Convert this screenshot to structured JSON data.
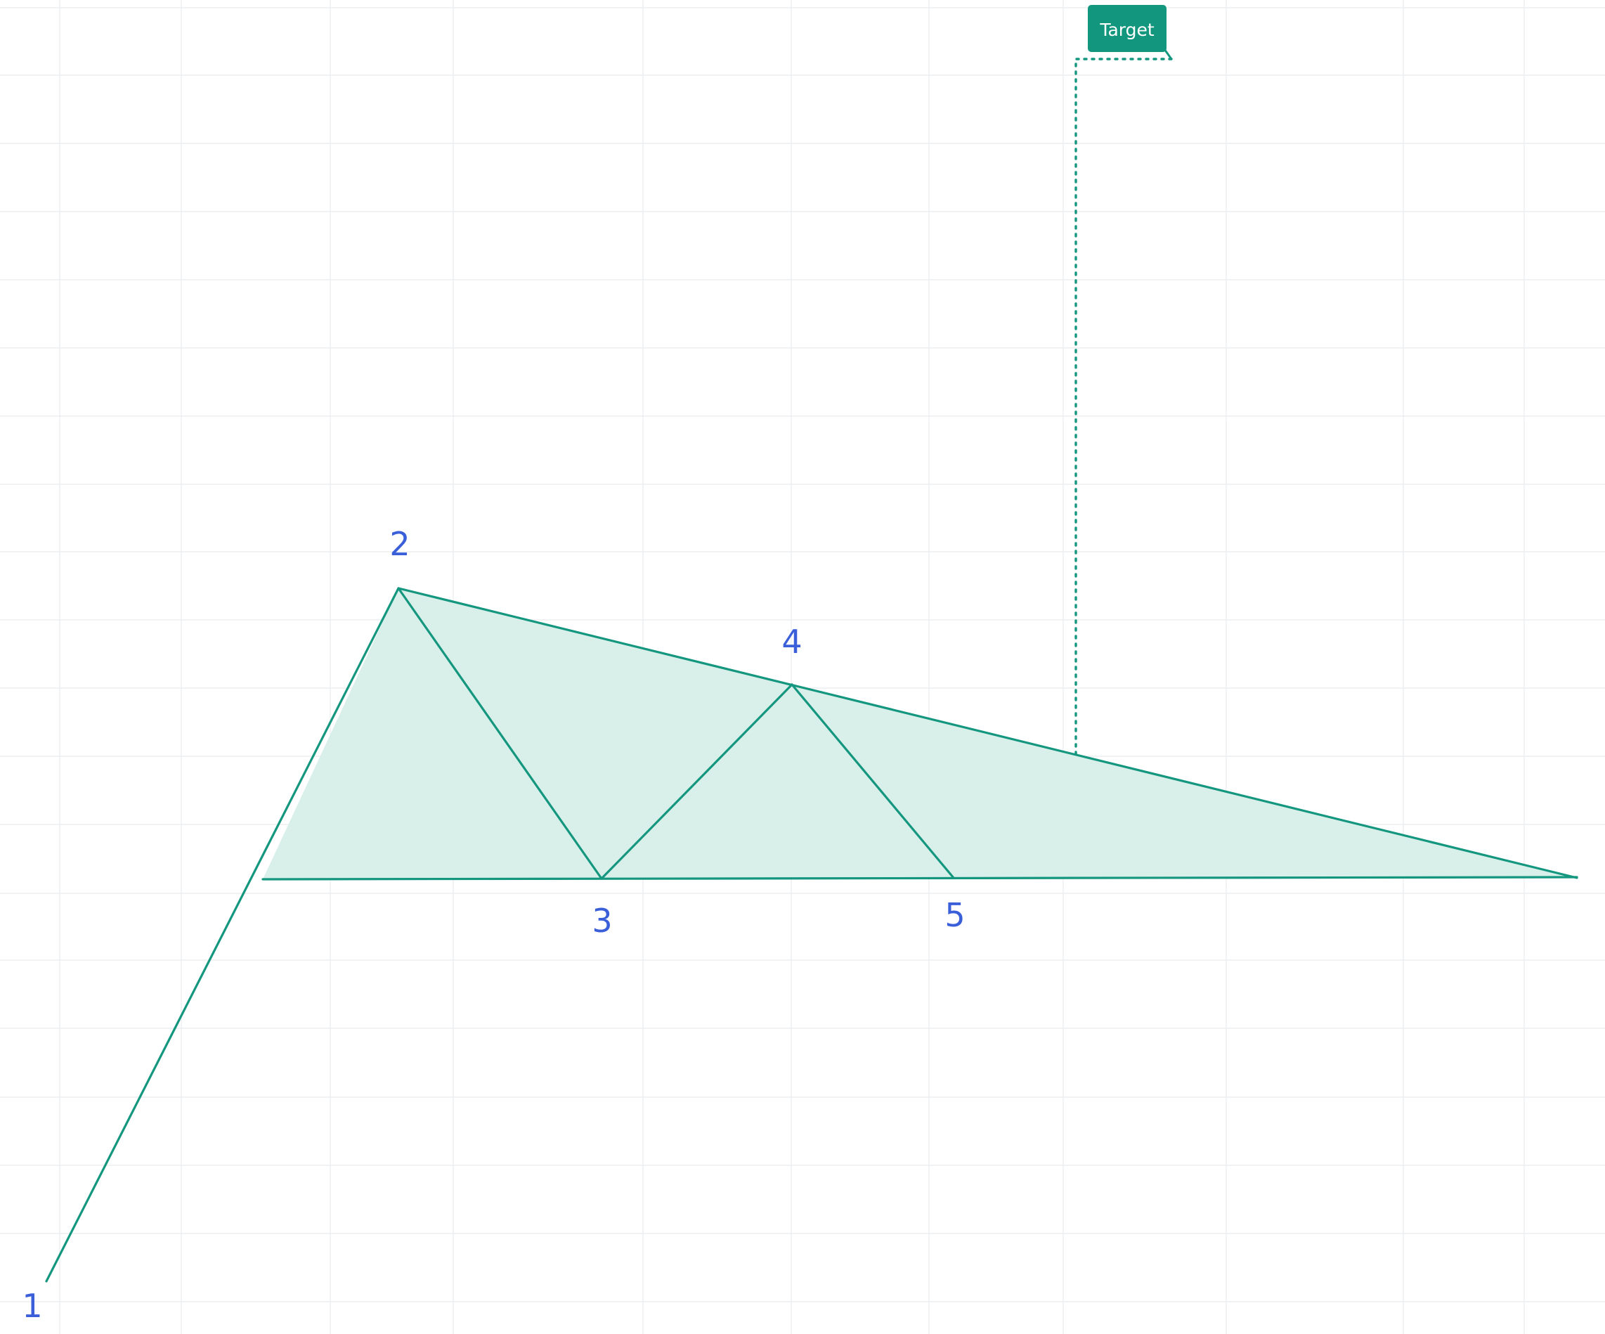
{
  "point_labels": [
    "1",
    "2",
    "3",
    "4",
    "5"
  ],
  "target_label": "Target",
  "colors": {
    "line": "#14967f",
    "fill": "#d9f0ea",
    "label": "#3a5fd9",
    "badge": "#12967e",
    "grid": "#eceef1"
  }
}
